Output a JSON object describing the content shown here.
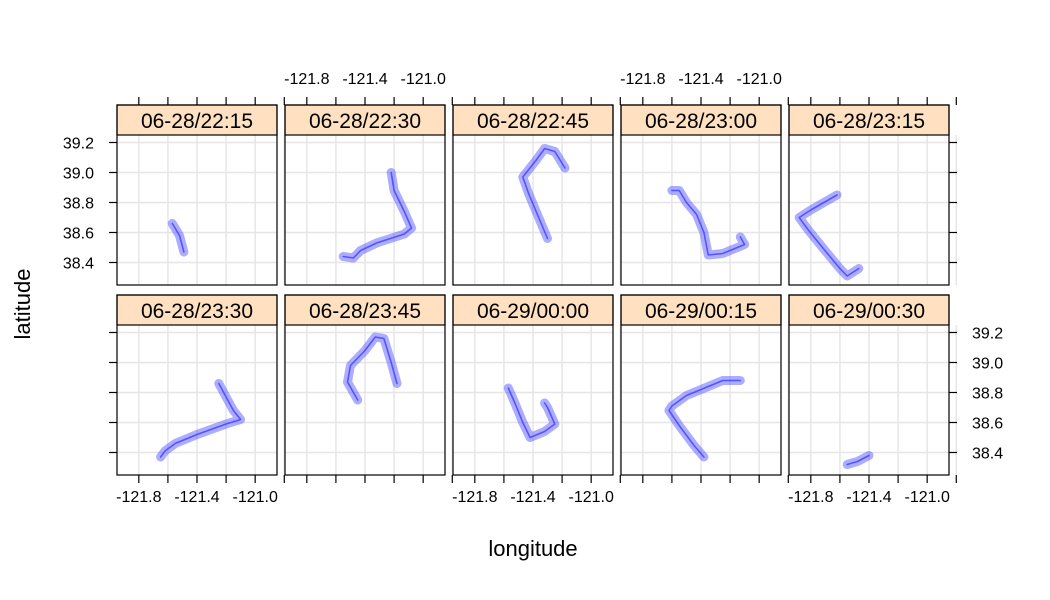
{
  "chart_data": {
    "type": "lattice-line",
    "xlabel": "longitude",
    "ylabel": "latitude",
    "xlim": [
      -121.95,
      -120.85
    ],
    "ylim": [
      38.25,
      39.25
    ],
    "x_ticks": [
      -121.8,
      -121.6,
      -121.4,
      -121.2,
      -121.0,
      -120.8
    ],
    "x_tick_labels": [
      {
        "value": -121.8,
        "label": "-121.8"
      },
      {
        "value": -121.4,
        "label": "-121.4"
      },
      {
        "value": -121.0,
        "label": "-121.0"
      }
    ],
    "y_ticks": [
      38.4,
      38.6,
      38.8,
      39.0,
      39.2
    ],
    "y_tick_labels": [
      {
        "value": 38.4,
        "label": "38.4"
      },
      {
        "value": 38.6,
        "label": "38.6"
      },
      {
        "value": 38.8,
        "label": "38.8"
      },
      {
        "value": 39.0,
        "label": "39.0"
      },
      {
        "value": 39.2,
        "label": "39.2"
      }
    ],
    "grid": true,
    "colors": {
      "trace": "#4a4aff",
      "strip": "#ffe0c0",
      "grid": "#e6e6e6",
      "frame": "#000000"
    },
    "layout_grid": {
      "columns": 5,
      "rows": 2
    },
    "panels": [
      {
        "label": "06-28/22:15",
        "path": [
          [
            -121.57,
            38.66
          ],
          [
            -121.52,
            38.58
          ],
          [
            -121.49,
            38.47
          ]
        ]
      },
      {
        "label": "06-28/22:30",
        "path": [
          [
            -121.22,
            39.0
          ],
          [
            -121.2,
            38.88
          ],
          [
            -121.13,
            38.74
          ],
          [
            -121.08,
            38.63
          ],
          [
            -121.13,
            38.59
          ],
          [
            -121.32,
            38.53
          ],
          [
            -121.43,
            38.48
          ],
          [
            -121.48,
            38.43
          ],
          [
            -121.55,
            38.44
          ]
        ]
      },
      {
        "label": "06-28/22:45",
        "path": [
          [
            -121.18,
            39.03
          ],
          [
            -121.25,
            39.14
          ],
          [
            -121.32,
            39.16
          ],
          [
            -121.38,
            39.08
          ],
          [
            -121.47,
            38.97
          ],
          [
            -121.43,
            38.86
          ],
          [
            -121.37,
            38.72
          ],
          [
            -121.3,
            38.56
          ]
        ]
      },
      {
        "label": "06-28/23:00",
        "path": [
          [
            -121.6,
            38.88
          ],
          [
            -121.55,
            38.88
          ],
          [
            -121.5,
            38.8
          ],
          [
            -121.43,
            38.72
          ],
          [
            -121.38,
            38.6
          ],
          [
            -121.35,
            38.45
          ],
          [
            -121.25,
            38.46
          ],
          [
            -121.1,
            38.52
          ],
          [
            -121.13,
            38.57
          ]
        ]
      },
      {
        "label": "06-28/23:15",
        "path": [
          [
            -121.62,
            38.85
          ],
          [
            -121.8,
            38.75
          ],
          [
            -121.88,
            38.7
          ],
          [
            -121.82,
            38.62
          ],
          [
            -121.72,
            38.5
          ],
          [
            -121.6,
            38.36
          ],
          [
            -121.55,
            38.31
          ],
          [
            -121.47,
            38.36
          ]
        ]
      },
      {
        "label": "06-28/23:30",
        "path": [
          [
            -121.25,
            38.86
          ],
          [
            -121.2,
            38.77
          ],
          [
            -121.15,
            38.68
          ],
          [
            -121.1,
            38.62
          ],
          [
            -121.2,
            38.59
          ],
          [
            -121.4,
            38.52
          ],
          [
            -121.55,
            38.46
          ],
          [
            -121.62,
            38.41
          ],
          [
            -121.65,
            38.37
          ]
        ]
      },
      {
        "label": "06-28/23:45",
        "path": [
          [
            -121.45,
            38.75
          ],
          [
            -121.52,
            38.87
          ],
          [
            -121.5,
            38.98
          ],
          [
            -121.4,
            39.08
          ],
          [
            -121.33,
            39.17
          ],
          [
            -121.27,
            39.16
          ],
          [
            -121.22,
            39.0
          ],
          [
            -121.18,
            38.86
          ]
        ]
      },
      {
        "label": "06-29/00:00",
        "path": [
          [
            -121.57,
            38.83
          ],
          [
            -121.52,
            38.72
          ],
          [
            -121.47,
            38.6
          ],
          [
            -121.42,
            38.5
          ],
          [
            -121.32,
            38.54
          ],
          [
            -121.25,
            38.59
          ],
          [
            -121.3,
            38.7
          ],
          [
            -121.32,
            38.73
          ]
        ]
      },
      {
        "label": "06-29/00:15",
        "path": [
          [
            -121.13,
            38.88
          ],
          [
            -121.25,
            38.88
          ],
          [
            -121.35,
            38.84
          ],
          [
            -121.5,
            38.78
          ],
          [
            -121.6,
            38.71
          ],
          [
            -121.62,
            38.68
          ],
          [
            -121.55,
            38.58
          ],
          [
            -121.45,
            38.45
          ],
          [
            -121.38,
            38.37
          ]
        ]
      },
      {
        "label": "06-29/00:30",
        "path": [
          [
            -121.55,
            38.32
          ],
          [
            -121.48,
            38.34
          ],
          [
            -121.4,
            38.38
          ]
        ]
      }
    ]
  }
}
